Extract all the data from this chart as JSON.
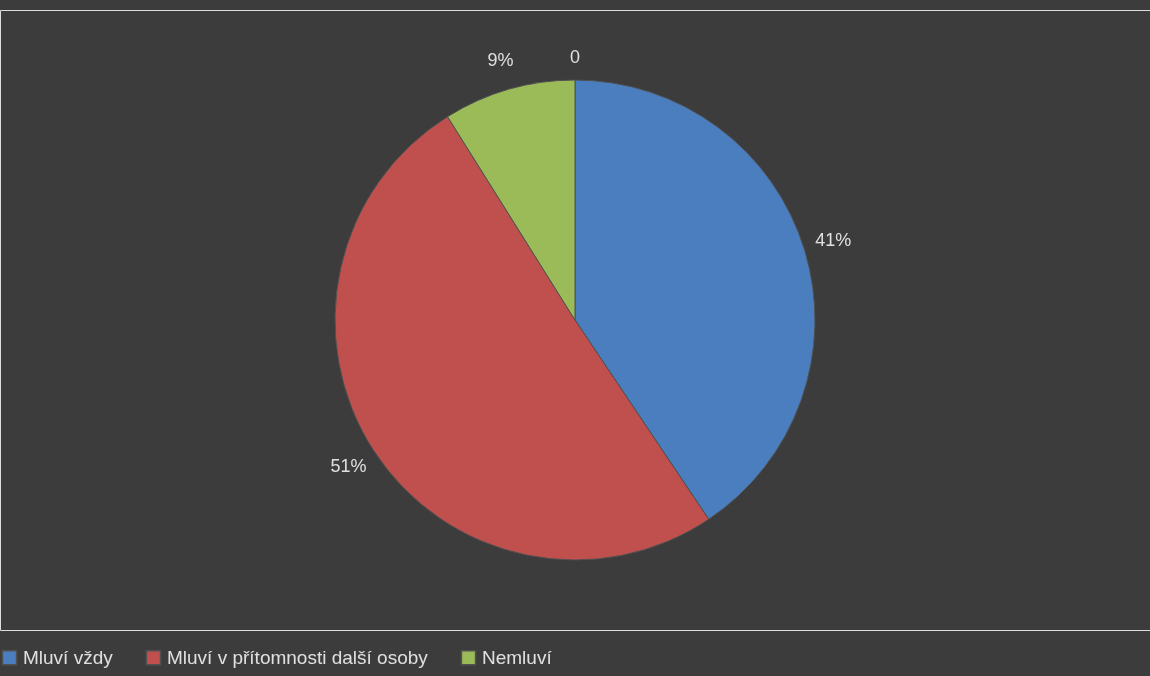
{
  "chart_data": {
    "type": "pie",
    "categories": [
      "Mluví vždy",
      "Mluví v přítomnosti další osoby",
      "Nemluví"
    ],
    "values": [
      41,
      51,
      9
    ],
    "colors": [
      "#4a7ebf",
      "#c0504d",
      "#9bbb59"
    ],
    "value_labels": [
      "41%",
      "51%",
      "9%"
    ],
    "annotations": [
      "0"
    ],
    "legend": "bottom"
  }
}
